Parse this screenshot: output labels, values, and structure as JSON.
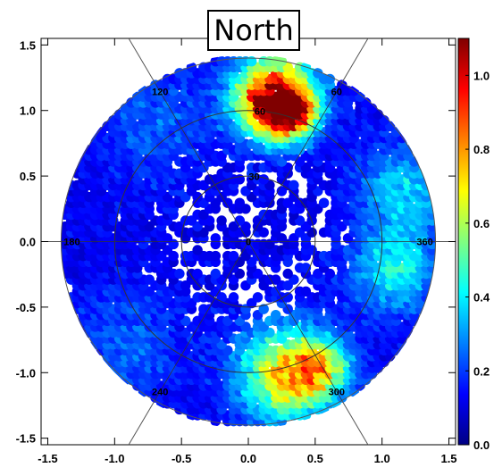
{
  "title": "North",
  "chart_data": {
    "type": "heatmap",
    "title": "North",
    "projection": "polar",
    "xlim": [
      -1.55,
      1.55
    ],
    "ylim": [
      -1.55,
      1.55
    ],
    "xticks": [
      -1.5,
      -1.0,
      -0.5,
      0.0,
      0.5,
      1.0,
      1.5
    ],
    "yticks": [
      -1.5,
      -1.0,
      -0.5,
      0.0,
      0.5,
      1.0,
      1.5
    ],
    "xtick_labels": [
      "-1.5",
      "-1.0",
      "-0.5",
      "0.0",
      "0.5",
      "1.0",
      "1.5"
    ],
    "ytick_labels": [
      "-1.5",
      "-1.0",
      "-0.5",
      "0.0",
      "0.5",
      "1.0",
      "1.5"
    ],
    "colorbar": {
      "min": 0.0,
      "max": 1.1,
      "ticks": [
        0.0,
        0.2,
        0.4,
        0.6,
        0.8,
        1.0
      ],
      "tick_labels": [
        "0.0",
        "0.2",
        "0.4",
        "0.6",
        "0.8",
        "1.0"
      ],
      "colormap": [
        "#000083",
        "#0000ff",
        "#0080ff",
        "#00ffff",
        "#80ff80",
        "#ffff00",
        "#ff8000",
        "#ff0000",
        "#800000"
      ]
    },
    "polar_grid": {
      "circles": [
        {
          "r": 0.5,
          "label": "30"
        },
        {
          "r": 1.0,
          "label": "60"
        }
      ],
      "outer_radius": 1.4,
      "spokes": [
        {
          "angle_deg": 0,
          "label": "360"
        },
        {
          "angle_deg": 60,
          "label": "60"
        },
        {
          "angle_deg": 120,
          "label": "120"
        },
        {
          "angle_deg": 180,
          "label": "180"
        },
        {
          "angle_deg": 240,
          "label": "240"
        },
        {
          "angle_deg": 300,
          "label": "300"
        }
      ],
      "center_label": "0"
    },
    "intensity_blobs": [
      {
        "x": 0.2,
        "y": 1.1,
        "sigma": 0.2,
        "value": 1.05
      },
      {
        "x": 0.35,
        "y": 0.98,
        "sigma": 0.12,
        "value": 0.55
      },
      {
        "x": 0.3,
        "y": -1.0,
        "sigma": 0.25,
        "value": 0.6
      },
      {
        "x": 0.55,
        "y": -0.95,
        "sigma": 0.15,
        "value": 0.35
      },
      {
        "x": 1.1,
        "y": -0.2,
        "sigma": 0.22,
        "value": 0.3
      },
      {
        "x": 1.2,
        "y": 0.4,
        "sigma": 0.25,
        "value": 0.25
      },
      {
        "x": -0.9,
        "y": -0.8,
        "sigma": 0.3,
        "value": 0.12
      },
      {
        "x": -0.7,
        "y": 0.9,
        "sigma": 0.3,
        "value": 0.12
      }
    ],
    "background_level": 0.08,
    "hole_region_radius": 0.62
  }
}
